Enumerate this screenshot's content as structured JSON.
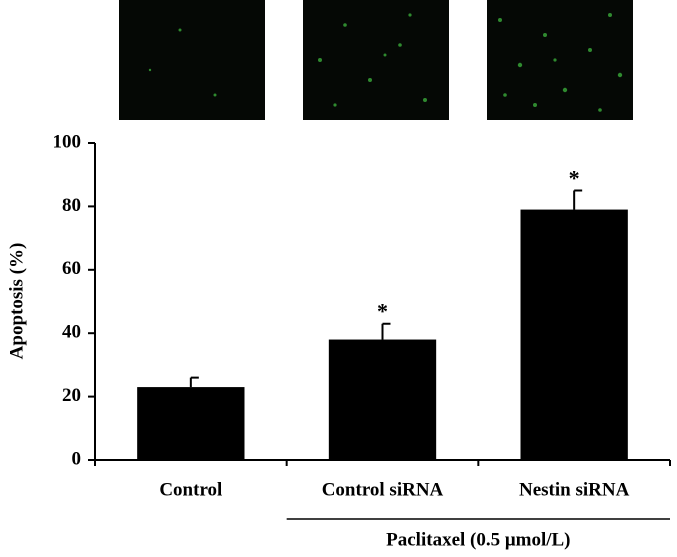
{
  "chart_data": {
    "type": "bar",
    "y_label": "Apoptosis (%)",
    "categories": [
      "Control",
      "Control siRNA",
      "Nestin siRNA"
    ],
    "values": [
      23,
      38,
      79
    ],
    "errors": [
      3,
      5,
      6
    ],
    "color": "#000000",
    "ylim": [
      0,
      100
    ],
    "yticks": [
      0,
      20,
      40,
      60,
      80,
      100
    ],
    "annotations": [
      {
        "category": "Control siRNA",
        "text": "*"
      },
      {
        "category": "Nestin siRNA",
        "text": "*"
      }
    ],
    "group_label": {
      "text": "Paclitaxel (0.5 μmol/L)",
      "categories": [
        "Control siRNA",
        "Nestin siRNA"
      ]
    }
  }
}
